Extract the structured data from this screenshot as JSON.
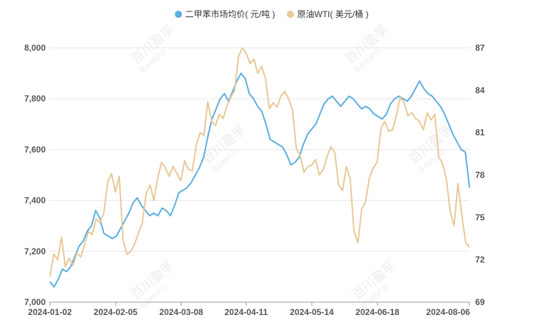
{
  "chart_data": {
    "type": "line",
    "title": "",
    "xlabel": "",
    "ylabel": "",
    "x_ticks": [
      "2024-01-02",
      "2024-02-05",
      "2024-03-08",
      "2024-04-11",
      "2024-05-14",
      "2024-06-18",
      "2024-08-06"
    ],
    "y_left_ticks": [
      "7,000",
      "7,200",
      "7,400",
      "7,600",
      "7,800",
      "8,000"
    ],
    "y_right_ticks": [
      "69",
      "72",
      "75",
      "78",
      "81",
      "84",
      "87"
    ],
    "ylim_left": [
      7000,
      8000
    ],
    "ylim_right": [
      69,
      87
    ],
    "grid": "horizontal",
    "legend_position": "top-center",
    "watermark": "百川盈孚 BAIINFO",
    "series": [
      {
        "name": "二甲苯市场均价( 元/吨 )",
        "axis": "left",
        "color": "#5aaee0",
        "values": [
          7080,
          7060,
          7090,
          7130,
          7120,
          7140,
          7180,
          7220,
          7240,
          7280,
          7300,
          7360,
          7330,
          7270,
          7260,
          7250,
          7260,
          7290,
          7320,
          7350,
          7390,
          7410,
          7380,
          7360,
          7340,
          7350,
          7340,
          7370,
          7360,
          7340,
          7380,
          7430,
          7440,
          7450,
          7470,
          7500,
          7530,
          7570,
          7650,
          7720,
          7760,
          7800,
          7820,
          7790,
          7830,
          7870,
          7900,
          7880,
          7820,
          7800,
          7770,
          7750,
          7700,
          7640,
          7630,
          7620,
          7610,
          7580,
          7540,
          7550,
          7570,
          7620,
          7660,
          7680,
          7700,
          7740,
          7780,
          7800,
          7810,
          7790,
          7770,
          7790,
          7810,
          7800,
          7780,
          7760,
          7770,
          7760,
          7740,
          7730,
          7720,
          7740,
          7780,
          7800,
          7810,
          7800,
          7790,
          7810,
          7840,
          7870,
          7840,
          7820,
          7810,
          7790,
          7770,
          7740,
          7700,
          7660,
          7630,
          7600,
          7590,
          7450
        ]
      },
      {
        "name": "原油WTI( 美元/桶 )",
        "axis": "right",
        "color": "#e8c898",
        "values": [
          70.8,
          72.4,
          72.0,
          73.6,
          71.5,
          72.1,
          71.6,
          72.5,
          72.2,
          73.1,
          74.0,
          73.8,
          74.9,
          74.6,
          75.3,
          77.5,
          78.1,
          76.8,
          77.9,
          73.4,
          72.4,
          72.6,
          73.1,
          73.9,
          74.6,
          76.7,
          77.3,
          76.2,
          77.8,
          78.9,
          78.5,
          77.9,
          78.6,
          78.1,
          77.6,
          79.0,
          78.4,
          78.3,
          80.1,
          81.0,
          80.8,
          83.2,
          81.8,
          81.5,
          82.3,
          82.0,
          82.9,
          83.5,
          84.0,
          86.4,
          87.0,
          86.6,
          85.9,
          86.2,
          85.2,
          85.7,
          84.8,
          82.7,
          83.1,
          82.8,
          83.6,
          83.9,
          83.4,
          82.6,
          79.9,
          79.4,
          78.2,
          78.6,
          78.7,
          79.1,
          78.0,
          78.4,
          79.3,
          80.0,
          79.6,
          77.3,
          76.9,
          78.6,
          77.7,
          74.0,
          73.2,
          75.6,
          76.1,
          77.8,
          78.5,
          78.9,
          81.3,
          81.8,
          81.1,
          81.2,
          82.2,
          83.5,
          83.1,
          82.2,
          82.4,
          82.0,
          81.8,
          81.2,
          82.4,
          81.9,
          82.3,
          79.3,
          78.8,
          77.7,
          75.4,
          74.4,
          77.4,
          75.2,
          73.2,
          72.9
        ]
      }
    ]
  }
}
